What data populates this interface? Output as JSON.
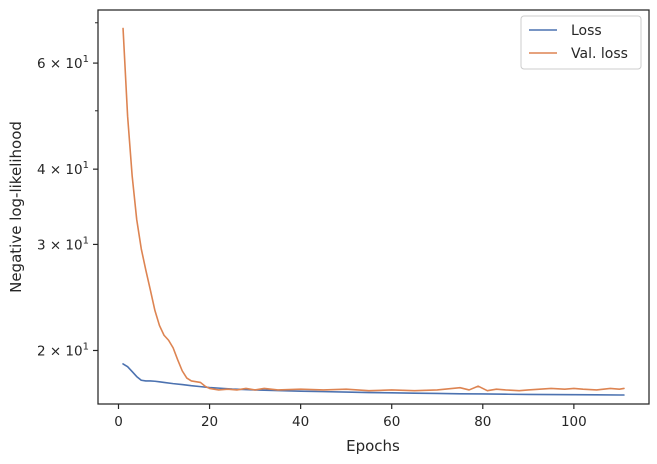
{
  "chart_data": {
    "type": "line",
    "title": "",
    "xlabel": "Epochs",
    "ylabel": "Negative log-likelihood",
    "yscale": "log",
    "xlim": [
      -4.5,
      116.5
    ],
    "ylim": [
      16.3,
      73.5
    ],
    "grid": false,
    "legend_position": "top-right",
    "x_ticks": [
      0,
      20,
      40,
      60,
      80,
      100
    ],
    "x_tick_labels": [
      "0",
      "20",
      "40",
      "60",
      "80",
      "100"
    ],
    "y_major_ticks": [
      20,
      30,
      40,
      60
    ],
    "y_major_tick_labels": [
      {
        "base": "2",
        "mult": "×",
        "ten": "10",
        "exp": "1"
      },
      {
        "base": "3",
        "mult": "×",
        "ten": "10",
        "exp": "1"
      },
      {
        "base": "4",
        "mult": "×",
        "ten": "10",
        "exp": "1"
      },
      {
        "base": "6",
        "mult": "×",
        "ten": "10",
        "exp": "1"
      }
    ],
    "y_minor_ticks": [
      50,
      70
    ],
    "colors": {
      "loss": "#4c72b0",
      "val_loss": "#dd8452",
      "axis": "#262626"
    },
    "series": [
      {
        "name": "Loss",
        "x": [
          1,
          2,
          3,
          4,
          5,
          6,
          7,
          8,
          9,
          10,
          12,
          14,
          16,
          18,
          20,
          22,
          25,
          30,
          35,
          40,
          45,
          50,
          55,
          60,
          65,
          70,
          75,
          80,
          85,
          90,
          95,
          100,
          105,
          110,
          111
        ],
        "values": [
          19.0,
          18.8,
          18.45,
          18.1,
          17.85,
          17.8,
          17.8,
          17.78,
          17.74,
          17.7,
          17.62,
          17.56,
          17.48,
          17.42,
          17.36,
          17.32,
          17.26,
          17.2,
          17.16,
          17.12,
          17.09,
          17.06,
          17.03,
          17.01,
          16.99,
          16.97,
          16.95,
          16.94,
          16.92,
          16.91,
          16.9,
          16.89,
          16.88,
          16.87,
          16.87
        ]
      },
      {
        "name": "Val. loss",
        "x": [
          1,
          2,
          3,
          4,
          5,
          6,
          7,
          8,
          9,
          10,
          11,
          12,
          13,
          14,
          15,
          16,
          17,
          18,
          19,
          20,
          22,
          24,
          26,
          28,
          30,
          32,
          35,
          40,
          45,
          50,
          55,
          60,
          65,
          70,
          75,
          77,
          79,
          81,
          83,
          85,
          88,
          90,
          95,
          98,
          100,
          102,
          105,
          108,
          110,
          111
        ],
        "values": [
          68.5,
          49.0,
          39.0,
          33.0,
          29.5,
          27.2,
          25.2,
          23.3,
          22.0,
          21.2,
          20.8,
          20.2,
          19.3,
          18.5,
          18.0,
          17.8,
          17.75,
          17.7,
          17.45,
          17.3,
          17.2,
          17.25,
          17.2,
          17.3,
          17.2,
          17.3,
          17.2,
          17.25,
          17.2,
          17.25,
          17.15,
          17.2,
          17.15,
          17.2,
          17.35,
          17.2,
          17.45,
          17.15,
          17.25,
          17.2,
          17.15,
          17.2,
          17.3,
          17.25,
          17.3,
          17.25,
          17.2,
          17.3,
          17.25,
          17.3
        ]
      }
    ]
  }
}
